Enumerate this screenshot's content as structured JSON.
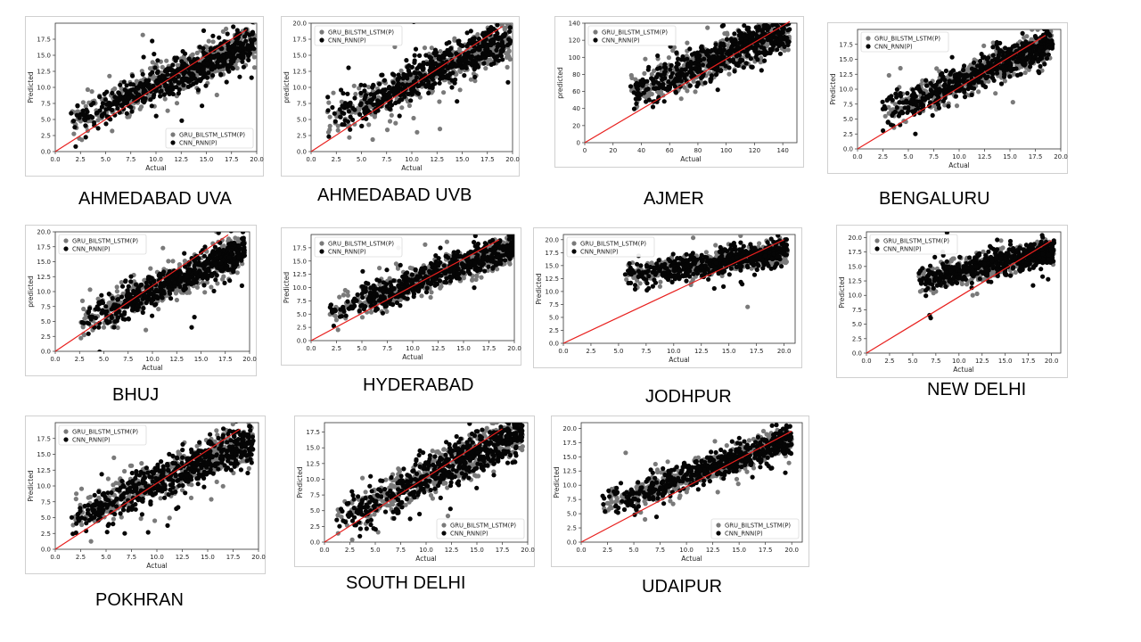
{
  "colors": {
    "gru": "#7a7a7a",
    "cnn": "#050505",
    "line": "#e8201e",
    "frame": "#9a9a9a"
  },
  "chart_data": [
    {
      "type": "scatter",
      "caption": "AHMEDABAD UVA",
      "xlabel": "Actual",
      "ylabel": "Predicted",
      "xlim": [
        0,
        20
      ],
      "ylim": [
        0,
        20
      ],
      "xticks": [
        "0.0",
        "2.5",
        "5.0",
        "7.5",
        "10.0",
        "12.5",
        "15.0",
        "17.5",
        "20.0"
      ],
      "yticks": [
        "0.0",
        "2.5",
        "5.0",
        "7.5",
        "10.0",
        "12.5",
        "15.0",
        "17.5"
      ],
      "legend": "bottom-right",
      "series": [
        {
          "name": "GRU_BILSTM_LSTM(P)"
        },
        {
          "name": "CNN_RNN(P)"
        }
      ],
      "diagonal": [
        [
          0,
          0
        ],
        [
          19,
          19
        ]
      ],
      "x_range": [
        1.5,
        19.8
      ],
      "trend": [
        3.5,
        0.68
      ],
      "spread": 1.4
    },
    {
      "type": "scatter",
      "caption": "AHMEDABAD UVB",
      "xlabel": "Actual",
      "ylabel": "predicted",
      "xlim": [
        0,
        20
      ],
      "ylim": [
        0,
        20
      ],
      "xticks": [
        "0.0",
        "2.5",
        "5.0",
        "7.5",
        "10.0",
        "12.5",
        "15.0",
        "17.5",
        "20.0"
      ],
      "yticks": [
        "0.0",
        "2.5",
        "5.0",
        "7.5",
        "10.0",
        "12.5",
        "15.0",
        "17.5",
        "20.0"
      ],
      "legend": "top-left",
      "series": [
        {
          "name": "GRU_BILSTM_LSTM(P)"
        },
        {
          "name": "CNN_RNN(P)"
        }
      ],
      "diagonal": [
        [
          0,
          0
        ],
        [
          19,
          19.5
        ]
      ],
      "x_range": [
        1.5,
        19.8
      ],
      "trend": [
        3.5,
        0.72
      ],
      "spread": 1.5
    },
    {
      "type": "scatter",
      "caption": "AJMER",
      "xlabel": "Actual",
      "ylabel": "predicted",
      "xlim": [
        0,
        150
      ],
      "ylim": [
        0,
        140
      ],
      "xticks": [
        "0",
        "20",
        "40",
        "60",
        "80",
        "100",
        "120",
        "140"
      ],
      "yticks": [
        "0",
        "20",
        "40",
        "60",
        "80",
        "100",
        "120",
        "140"
      ],
      "legend": "top-left",
      "series": [
        {
          "name": "GRU_BILSTM_LSTM(P)"
        },
        {
          "name": "CNN_RNN(P)"
        }
      ],
      "diagonal": [
        [
          0,
          0
        ],
        [
          145,
          142
        ]
      ],
      "x_range": [
        32,
        145
      ],
      "trend": [
        35,
        0.68
      ],
      "spread": 11
    },
    {
      "type": "scatter",
      "caption": "BENGALURU",
      "xlabel": "Actual",
      "ylabel": "Predicted",
      "xlim": [
        0,
        20
      ],
      "ylim": [
        0,
        20
      ],
      "xticks": [
        "0.0",
        "2.5",
        "5.0",
        "7.5",
        "10.0",
        "12.5",
        "15.0",
        "17.5",
        "20.0"
      ],
      "yticks": [
        "0.0",
        "2.5",
        "5.0",
        "7.5",
        "10.0",
        "12.5",
        "15.0",
        "17.5"
      ],
      "legend": "top-left",
      "series": [
        {
          "name": "GRU_BILSTM_LSTM(P)"
        },
        {
          "name": "CNN_RNN(P)"
        }
      ],
      "diagonal": [
        [
          0,
          0
        ],
        [
          18.5,
          19
        ]
      ],
      "x_range": [
        2.2,
        19.2
      ],
      "trend": [
        4.0,
        0.72
      ],
      "spread": 1.3
    },
    {
      "type": "scatter",
      "caption": "BHUJ",
      "xlabel": "Actual",
      "ylabel": "predicted",
      "xlim": [
        0,
        20
      ],
      "ylim": [
        0,
        20
      ],
      "xticks": [
        "0.0",
        "2.5",
        "5.0",
        "7.5",
        "10.0",
        "12.5",
        "15.0",
        "17.5",
        "20.0"
      ],
      "yticks": [
        "0.0",
        "2.5",
        "5.0",
        "7.5",
        "10.0",
        "12.5",
        "15.0",
        "17.5",
        "20.0"
      ],
      "legend": "top-left",
      "series": [
        {
          "name": "GRU_BILSTM_LSTM(P)"
        },
        {
          "name": "CNN_RNN(P)"
        }
      ],
      "diagonal": [
        [
          0,
          0
        ],
        [
          17.8,
          19.5
        ]
      ],
      "x_range": [
        2.5,
        19.5
      ],
      "trend": [
        3.2,
        0.7
      ],
      "spread": 1.4
    },
    {
      "type": "scatter",
      "caption": "HYDERABAD",
      "xlabel": "Actual",
      "ylabel": "Predicted",
      "xlim": [
        0,
        20
      ],
      "ylim": [
        0,
        20
      ],
      "xticks": [
        "0.0",
        "2.5",
        "5.0",
        "7.5",
        "10.0",
        "12.5",
        "15.0",
        "17.5",
        "20.0"
      ],
      "yticks": [
        "0.0",
        "2.5",
        "5.0",
        "7.5",
        "10.0",
        "12.5",
        "15.0",
        "17.5"
      ],
      "legend": "top-left",
      "series": [
        {
          "name": "GRU_BILSTM_LSTM(P)"
        },
        {
          "name": "CNN_RNN(P)"
        }
      ],
      "diagonal": [
        [
          0,
          0
        ],
        [
          18.5,
          19
        ]
      ],
      "x_range": [
        1.5,
        20
      ],
      "trend": [
        4.0,
        0.7
      ],
      "spread": 1.4
    },
    {
      "type": "scatter",
      "caption": "JODHPUR",
      "xlabel": "Actual",
      "ylabel": "Predicted",
      "xlim": [
        0,
        21
      ],
      "ylim": [
        0,
        21
      ],
      "xticks": [
        "0.0",
        "2.5",
        "5.0",
        "7.5",
        "10.0",
        "12.5",
        "15.0",
        "17.5",
        "20.0"
      ],
      "yticks": [
        "0.0",
        "2.5",
        "5.0",
        "7.5",
        "10.0",
        "12.5",
        "15.0",
        "17.5",
        "20.0"
      ],
      "legend": "top-left",
      "series": [
        {
          "name": "GRU_BILSTM_LSTM(P)"
        },
        {
          "name": "CNN_RNN(P)"
        }
      ],
      "diagonal": [
        [
          0,
          0
        ],
        [
          20,
          20
        ]
      ],
      "x_range": [
        5.5,
        20.3
      ],
      "trend": [
        11.0,
        0.33
      ],
      "spread": 1.1
    },
    {
      "type": "scatter",
      "caption": "NEW DELHI",
      "xlabel": "Actual",
      "ylabel": "Predicted",
      "xlim": [
        0,
        21
      ],
      "ylim": [
        0,
        21
      ],
      "xticks": [
        "0.0",
        "2.5",
        "5.0",
        "7.5",
        "10.0",
        "12.5",
        "15.0",
        "17.5",
        "20.0"
      ],
      "yticks": [
        "0.0",
        "2.5",
        "5.0",
        "7.5",
        "10.0",
        "12.5",
        "15.0",
        "17.5",
        "20.0"
      ],
      "legend": "top-left",
      "series": [
        {
          "name": "GRU_BILSTM_LSTM(P)"
        },
        {
          "name": "CNN_RNN(P)"
        }
      ],
      "diagonal": [
        [
          0,
          0
        ],
        [
          20,
          19.5
        ]
      ],
      "x_range": [
        5.5,
        20.3
      ],
      "trend": [
        10.5,
        0.36
      ],
      "spread": 1.1
    },
    {
      "type": "scatter",
      "caption": "POKHRAN",
      "xlabel": "Actual",
      "ylabel": "Predicted",
      "xlim": [
        0,
        20
      ],
      "ylim": [
        0,
        20
      ],
      "xticks": [
        "0.0",
        "2.5",
        "5.0",
        "7.5",
        "10.0",
        "12.5",
        "15.0",
        "17.5",
        "20.0"
      ],
      "yticks": [
        "0.0",
        "2.5",
        "5.0",
        "7.5",
        "10.0",
        "12.5",
        "15.0",
        "17.5"
      ],
      "legend": "top-left",
      "series": [
        {
          "name": "GRU_BILSTM_LSTM(P)"
        },
        {
          "name": "CNN_RNN(P)"
        }
      ],
      "diagonal": [
        [
          0,
          0
        ],
        [
          18.2,
          19
        ]
      ],
      "x_range": [
        1.5,
        19.5
      ],
      "trend": [
        4.0,
        0.68
      ],
      "spread": 1.5
    },
    {
      "type": "scatter",
      "caption": "SOUTH DELHI",
      "xlabel": "Actual",
      "ylabel": "Predicted",
      "xlim": [
        0,
        20
      ],
      "ylim": [
        0,
        19
      ],
      "xticks": [
        "0.0",
        "2.5",
        "5.0",
        "7.5",
        "10.0",
        "12.5",
        "15.0",
        "17.5",
        "20.0"
      ],
      "yticks": [
        "0.0",
        "2.5",
        "5.0",
        "7.5",
        "10.0",
        "12.5",
        "15.0",
        "17.5"
      ],
      "legend": "bottom-right",
      "series": [
        {
          "name": "GRU_BILSTM_LSTM(P)"
        },
        {
          "name": "CNN_RNN(P)"
        }
      ],
      "diagonal": [
        [
          0,
          0
        ],
        [
          17.5,
          18
        ]
      ],
      "x_range": [
        1.2,
        19.5
      ],
      "trend": [
        2.5,
        0.78
      ],
      "spread": 1.6
    },
    {
      "type": "scatter",
      "caption": "UDAIPUR",
      "xlabel": "Actual",
      "ylabel": "Predicted",
      "xlim": [
        0,
        21
      ],
      "ylim": [
        0,
        21
      ],
      "xticks": [
        "0.0",
        "2.5",
        "5.0",
        "7.5",
        "10.0",
        "12.5",
        "15.0",
        "17.5",
        "20.0"
      ],
      "yticks": [
        "0.0",
        "2.5",
        "5.0",
        "7.5",
        "10.0",
        "12.5",
        "15.0",
        "17.5",
        "20.0"
      ],
      "legend": "bottom-right",
      "series": [
        {
          "name": "GRU_BILSTM_LSTM(P)"
        },
        {
          "name": "CNN_RNN(P)"
        }
      ],
      "diagonal": [
        [
          0,
          0
        ],
        [
          20,
          19.5
        ]
      ],
      "x_range": [
        2,
        20
      ],
      "trend": [
        5.0,
        0.65
      ],
      "spread": 1.2
    }
  ]
}
